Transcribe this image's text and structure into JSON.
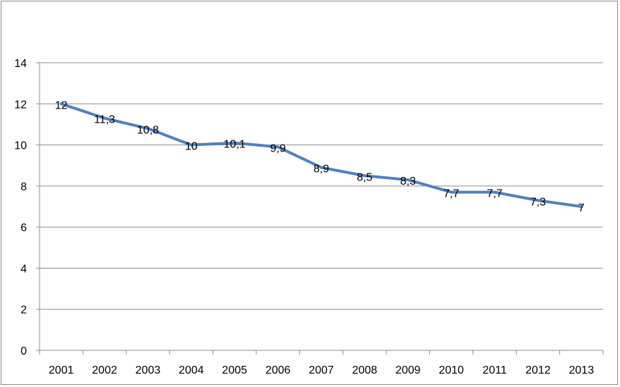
{
  "chart_data": {
    "type": "line",
    "title": "",
    "xlabel": "",
    "ylabel": "",
    "categories": [
      "2001",
      "2002",
      "2003",
      "2004",
      "2005",
      "2006",
      "2007",
      "2008",
      "2009",
      "2010",
      "2011",
      "2012",
      "2013"
    ],
    "series": [
      {
        "values": [
          12,
          11.3,
          10.8,
          10,
          10.1,
          9.9,
          8.9,
          8.5,
          8.3,
          7.7,
          7.7,
          7.3,
          7
        ],
        "labels": [
          "12",
          "11,3",
          "10,8",
          "10",
          "10,1",
          "9,9",
          "8,9",
          "8,5",
          "8,3",
          "7,7",
          "7,7",
          "7,3",
          "7"
        ],
        "color": "#4f81bd"
      }
    ],
    "ylim": [
      0,
      14
    ],
    "yticks": [
      0,
      2,
      4,
      6,
      8,
      10,
      12,
      14
    ],
    "grid": true,
    "legend": false,
    "colors": {
      "gridline": "#8c8c8c",
      "axis": "#8c8c8c"
    }
  }
}
